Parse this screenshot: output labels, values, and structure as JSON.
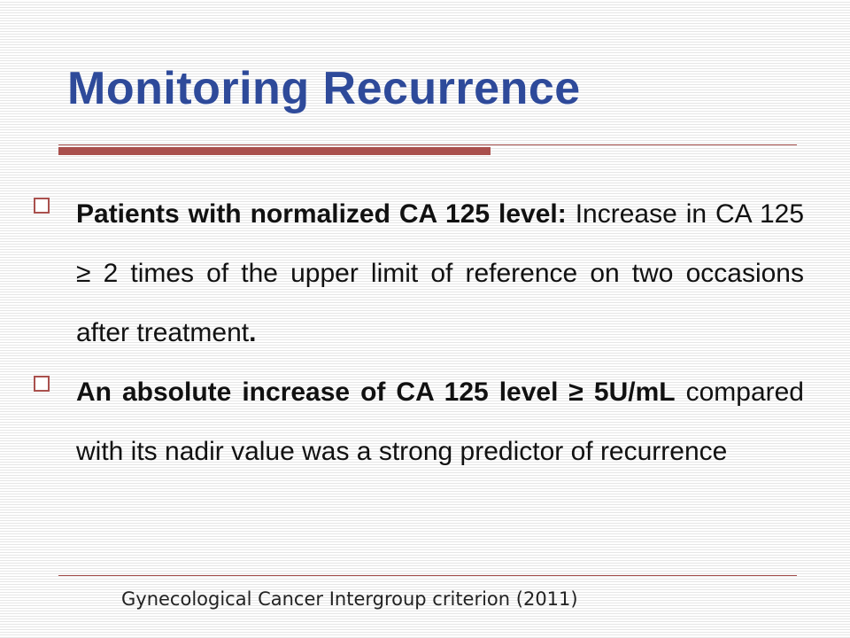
{
  "slide": {
    "title": "Monitoring Recurrence",
    "bullets": [
      {
        "icon": "hollow-square-bullet-icon",
        "bold_text": "Patients with normalized CA 125 level:",
        "text": " Increase in CA 125 ≥ 2 times of the upper limit of reference on two occasions after treatment",
        "bold_tail": "."
      },
      {
        "icon": "hollow-square-bullet-icon",
        "bold_text": "An absolute increase of CA 125 level ≥ 5U/mL",
        "text": " compared with its nadir value was a strong predictor of recurrence",
        "bold_tail": ""
      }
    ],
    "citation": "Gynecological Cancer Intergroup criterion (2011)"
  },
  "colors": {
    "title": "#2e4a9a",
    "accent_rule": "#a9504d",
    "body_text": "#111111"
  }
}
